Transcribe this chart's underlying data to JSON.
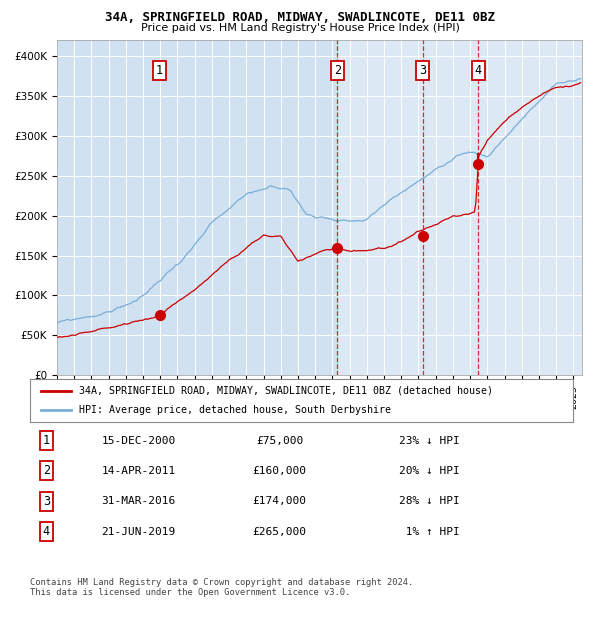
{
  "title1": "34A, SPRINGFIELD ROAD, MIDWAY, SWADLINCOTE, DE11 0BZ",
  "title2": "Price paid vs. HM Land Registry's House Price Index (HPI)",
  "bg_color": "#dce9f5",
  "transactions": [
    {
      "num": 1,
      "date_str": "15-DEC-2000",
      "date_x": 2000.96,
      "price": 75000
    },
    {
      "num": 2,
      "date_str": "14-APR-2011",
      "date_x": 2011.28,
      "price": 160000
    },
    {
      "num": 3,
      "date_str": "31-MAR-2016",
      "date_x": 2016.25,
      "price": 174000
    },
    {
      "num": 4,
      "date_str": "21-JUN-2019",
      "date_x": 2019.47,
      "price": 265000
    }
  ],
  "legend_label_red": "34A, SPRINGFIELD ROAD, MIDWAY, SWADLINCOTE, DE11 0BZ (detached house)",
  "legend_label_blue": "HPI: Average price, detached house, South Derbyshire",
  "footer": "Contains HM Land Registry data © Crown copyright and database right 2024.\nThis data is licensed under the Open Government Licence v3.0.",
  "xmin": 1995.0,
  "xmax": 2025.5,
  "ymin": 0,
  "ymax": 420000,
  "red_color": "#cc0000",
  "blue_color": "#7aaed6",
  "table_rows": [
    {
      "num": 1,
      "date": "15-DEC-2000",
      "price": "£75,000",
      "pct": "23% ↓ HPI"
    },
    {
      "num": 2,
      "date": "14-APR-2011",
      "price": "£160,000",
      "pct": "20% ↓ HPI"
    },
    {
      "num": 3,
      "date": "31-MAR-2016",
      "price": "£174,000",
      "pct": "28% ↓ HPI"
    },
    {
      "num": 4,
      "date": "21-JUN-2019",
      "price": "£265,000",
      "pct": " 1% ↑ HPI"
    }
  ]
}
